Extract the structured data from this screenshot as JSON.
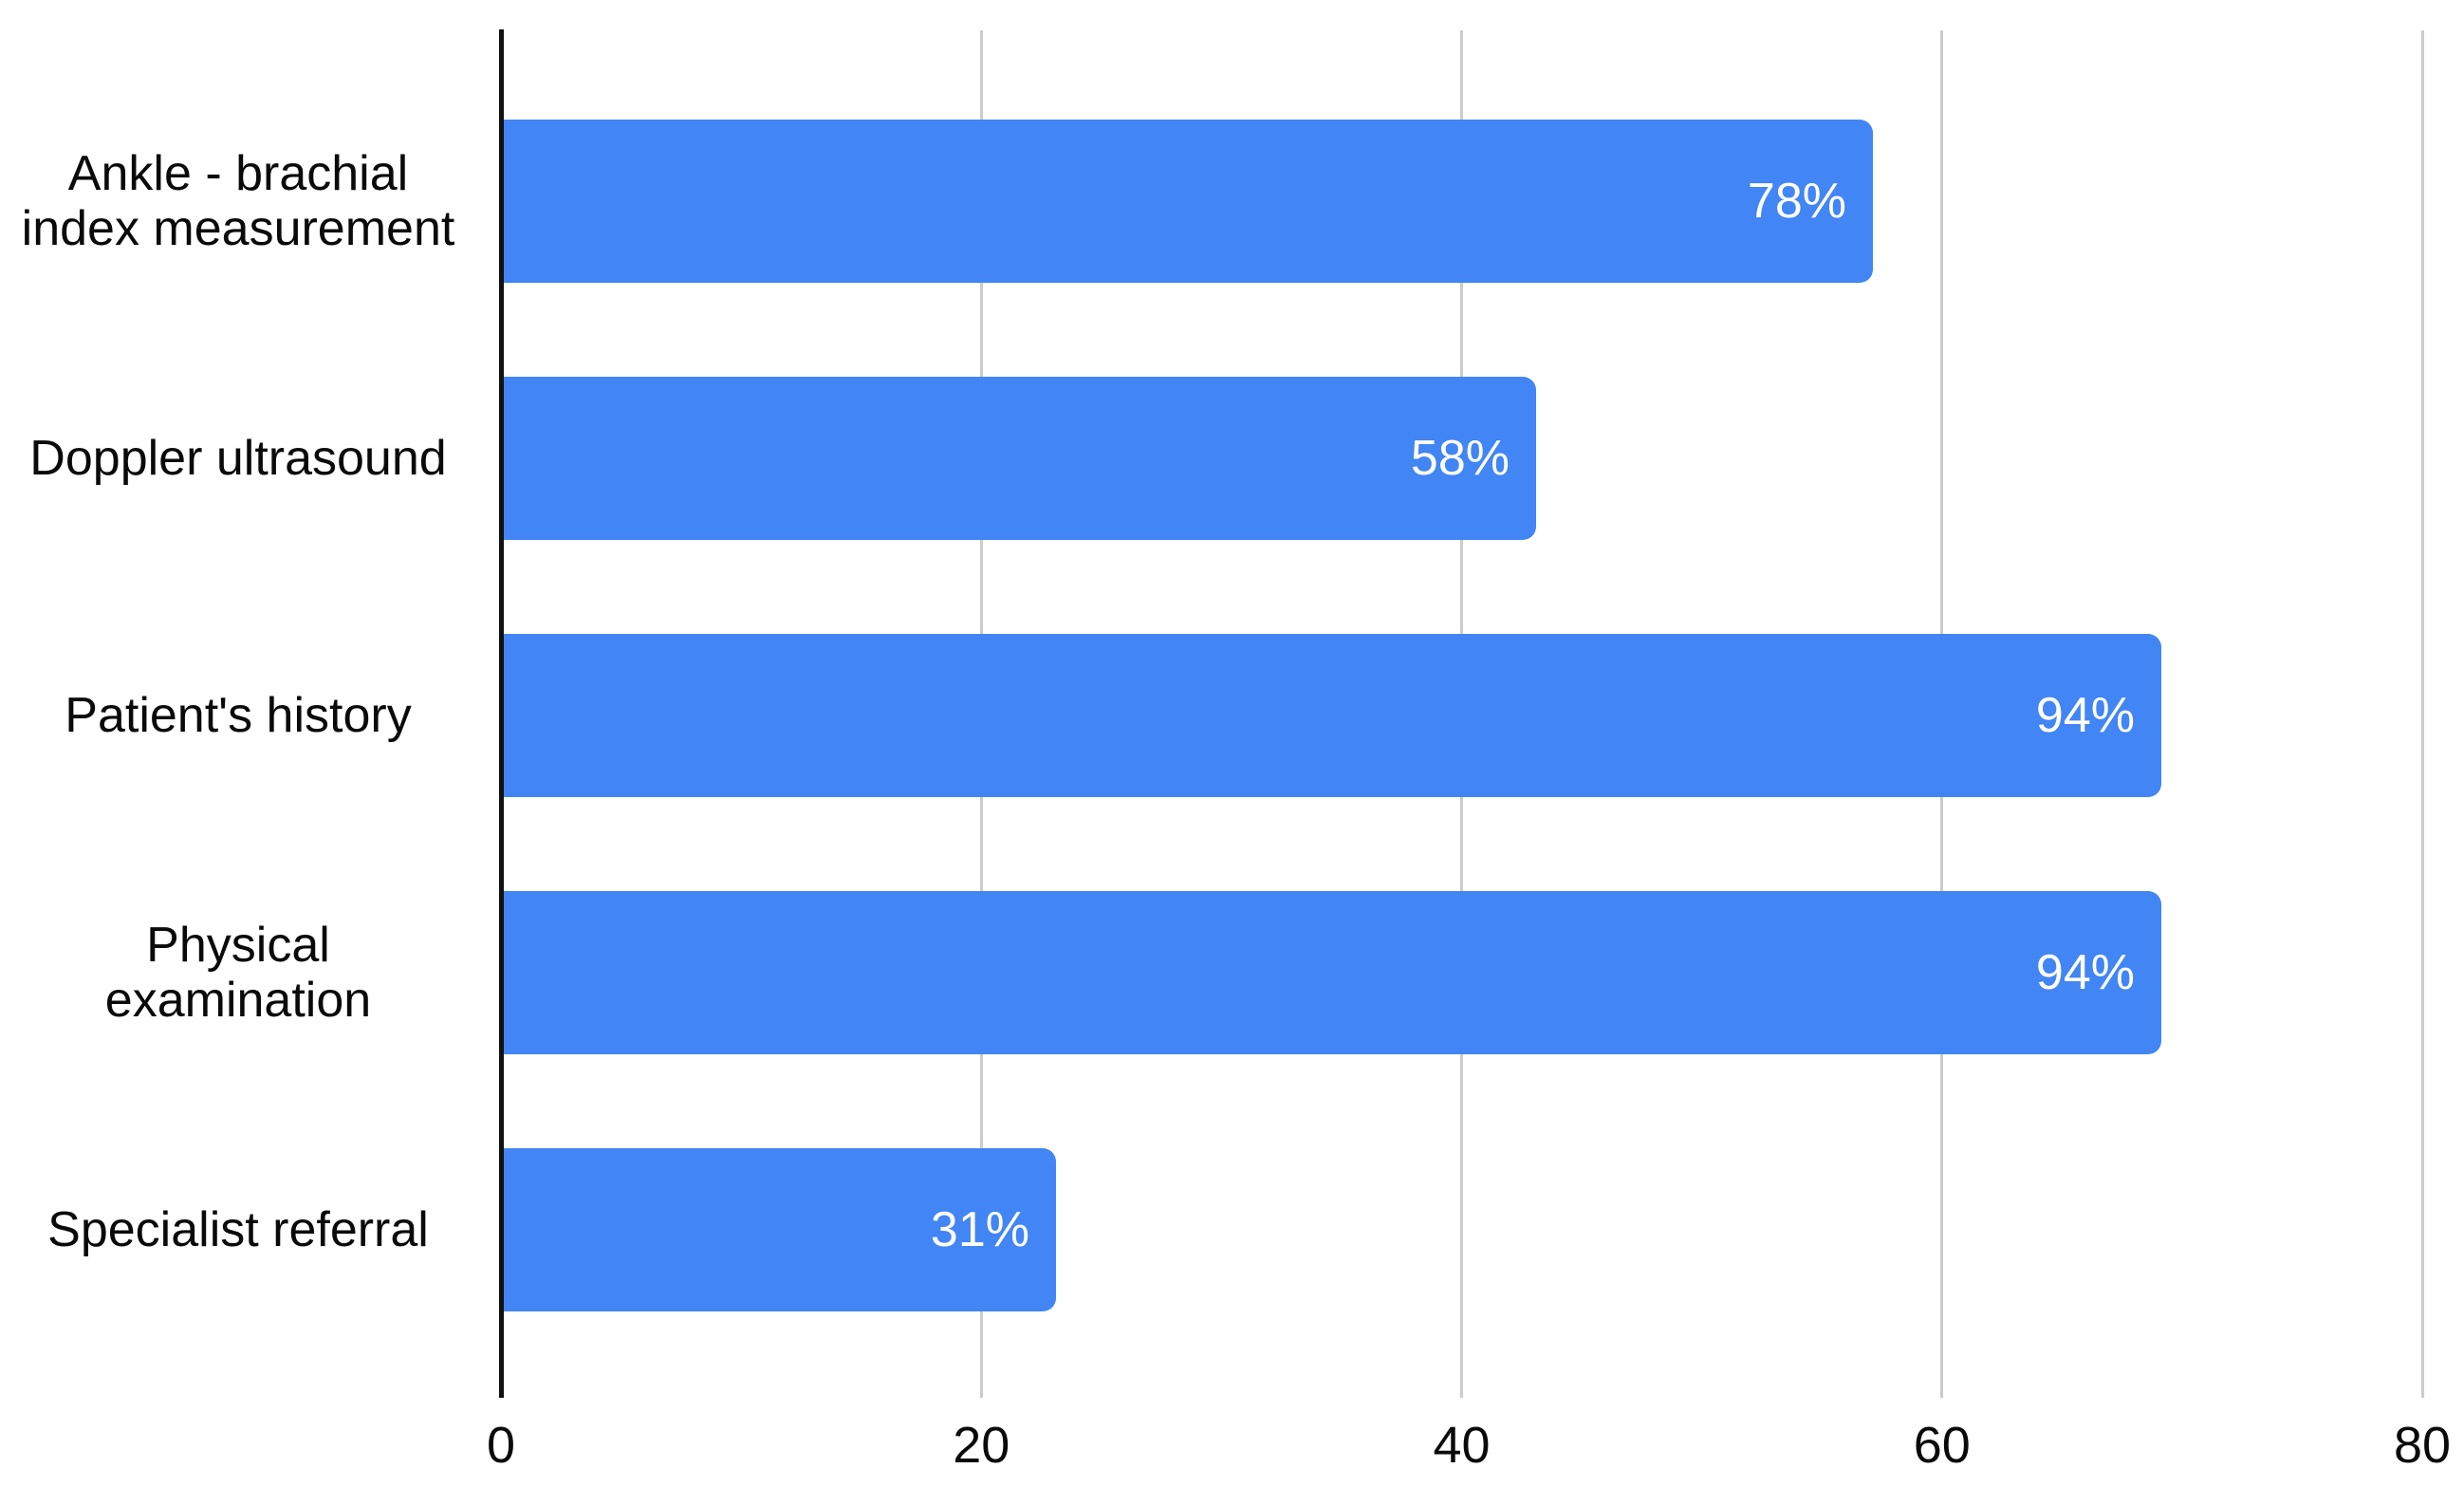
{
  "chart_data": {
    "type": "bar",
    "orientation": "horizontal",
    "title": "",
    "xlabel": "",
    "ylabel": "",
    "legend": "none",
    "grid": true,
    "categories": [
      "Ankle - brachial index measurement",
      "Doppler ultrasound",
      "Patient's history",
      "Physical examination",
      "Specialist referral"
    ],
    "category_labels_multiline": [
      "Ankle - brachial\nindex measurement",
      "Doppler ultrasound",
      "Patient's history",
      "Physical\nexamination",
      "Specialist referral"
    ],
    "value_labels": [
      "78%",
      "58%",
      "94%",
      "94%",
      "31%"
    ],
    "values_percent": [
      78,
      58,
      94,
      94,
      31
    ],
    "bar_extents_axis_units": [
      57,
      43,
      69,
      69,
      23
    ],
    "xlim": [
      0,
      80
    ],
    "x_ticks": [
      0,
      20,
      40,
      60,
      80
    ],
    "colors": {
      "bar": "#4285F4",
      "value_label": "#ffffff",
      "gridline": "#cccccc",
      "axis_line": "#111111",
      "text": "#0a0a0a",
      "background": "#ffffff"
    }
  }
}
